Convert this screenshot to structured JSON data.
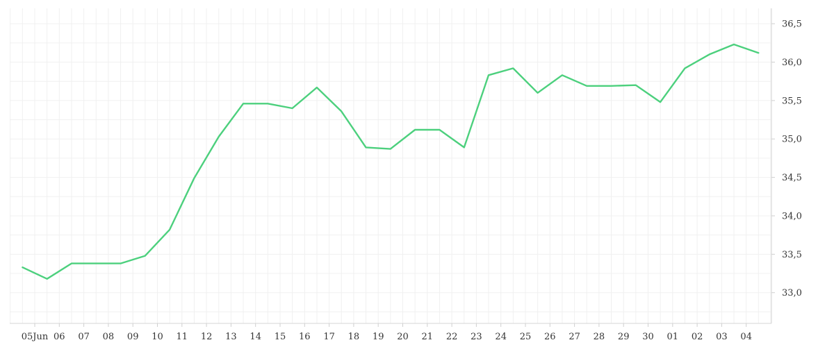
{
  "colors": {
    "series": "#4cd07d",
    "grid": "#f0f0f0",
    "axis": "#d6d6d6",
    "text": "#333333"
  },
  "chart_data": {
    "type": "line",
    "title": "",
    "xlabel": "",
    "ylabel": "",
    "grid": true,
    "legend": "none",
    "ylim": [
      32.6,
      36.7
    ],
    "y_axis_position": "right",
    "y_ticks": [
      33.0,
      33.5,
      34.0,
      34.5,
      35.0,
      35.5,
      36.0,
      36.5
    ],
    "y_tick_labels": [
      "33,0",
      "33,5",
      "34,0",
      "34,5",
      "35,0",
      "35,5",
      "36,0",
      "36,5"
    ],
    "x_tick_labels": [
      "05Jun",
      "06",
      "07",
      "08",
      "09",
      "10",
      "11",
      "12",
      "13",
      "14",
      "15",
      "16",
      "17",
      "18",
      "19",
      "20",
      "21",
      "22",
      "23",
      "24",
      "25",
      "26",
      "27",
      "28",
      "29",
      "30",
      "01",
      "02",
      "03",
      "04"
    ],
    "x": [
      "2023-06-04T12:00",
      "2023-06-05T12:00",
      "2023-06-06T12:00",
      "2023-06-07T12:00",
      "2023-06-08T12:00",
      "2023-06-09T12:00",
      "2023-06-10T12:00",
      "2023-06-11T12:00",
      "2023-06-12T12:00",
      "2023-06-13T12:00",
      "2023-06-14T12:00",
      "2023-06-15T12:00",
      "2023-06-16T12:00",
      "2023-06-17T12:00",
      "2023-06-18T12:00",
      "2023-06-19T12:00",
      "2023-06-20T12:00",
      "2023-06-21T12:00",
      "2023-06-22T12:00",
      "2023-06-23T12:00",
      "2023-06-24T12:00",
      "2023-06-25T12:00",
      "2023-06-26T12:00",
      "2023-06-27T12:00",
      "2023-06-28T12:00",
      "2023-06-29T12:00",
      "2023-06-30T12:00",
      "2023-07-01T12:00",
      "2023-07-02T12:00",
      "2023-07-03T12:00",
      "2023-07-04T12:00"
    ],
    "series": [
      {
        "values": [
          33.33,
          33.18,
          33.38,
          33.38,
          33.38,
          33.48,
          33.82,
          34.49,
          35.03,
          35.46,
          35.46,
          35.4,
          35.67,
          35.36,
          34.89,
          34.87,
          35.12,
          35.12,
          34.89,
          35.83,
          35.92,
          35.6,
          35.83,
          35.69,
          35.69,
          35.7,
          35.48,
          35.92,
          36.1,
          36.23,
          36.12
        ]
      }
    ]
  }
}
